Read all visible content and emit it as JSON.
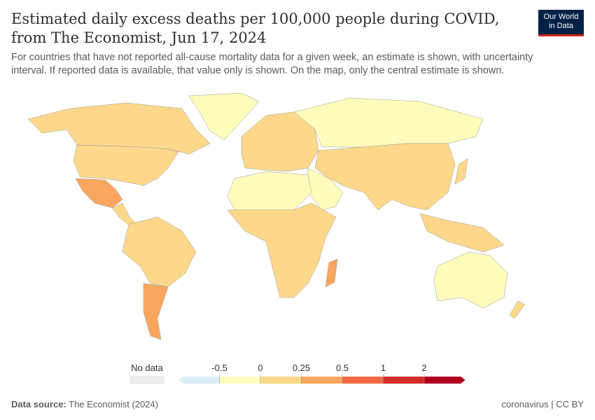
{
  "title": "Estimated daily excess deaths per 100,000 people during COVID, from The Economist, Jun 17, 2024",
  "subtitle": "For countries that have not reported all-cause mortality data for a given week, an estimate is shown, with uncertainty interval. If reported data is available, that value only is shown. On the map, only the central estimate is shown.",
  "logo": {
    "line1": "Our World",
    "line2": "in Data"
  },
  "legend": {
    "no_data_label": "No data",
    "ticks": [
      "-0.5",
      "0",
      "0.25",
      "0.5",
      "1",
      "2"
    ],
    "colors": [
      "#d9edf5",
      "#fefcbb",
      "#fdd88a",
      "#fba65e",
      "#f26a44",
      "#d42c27",
      "#b0001f"
    ],
    "no_data_color": "#eeeeee"
  },
  "footer": {
    "source_label": "Data source:",
    "source": "The Economist (2024)",
    "right": "coronavirus | CC BY"
  }
}
